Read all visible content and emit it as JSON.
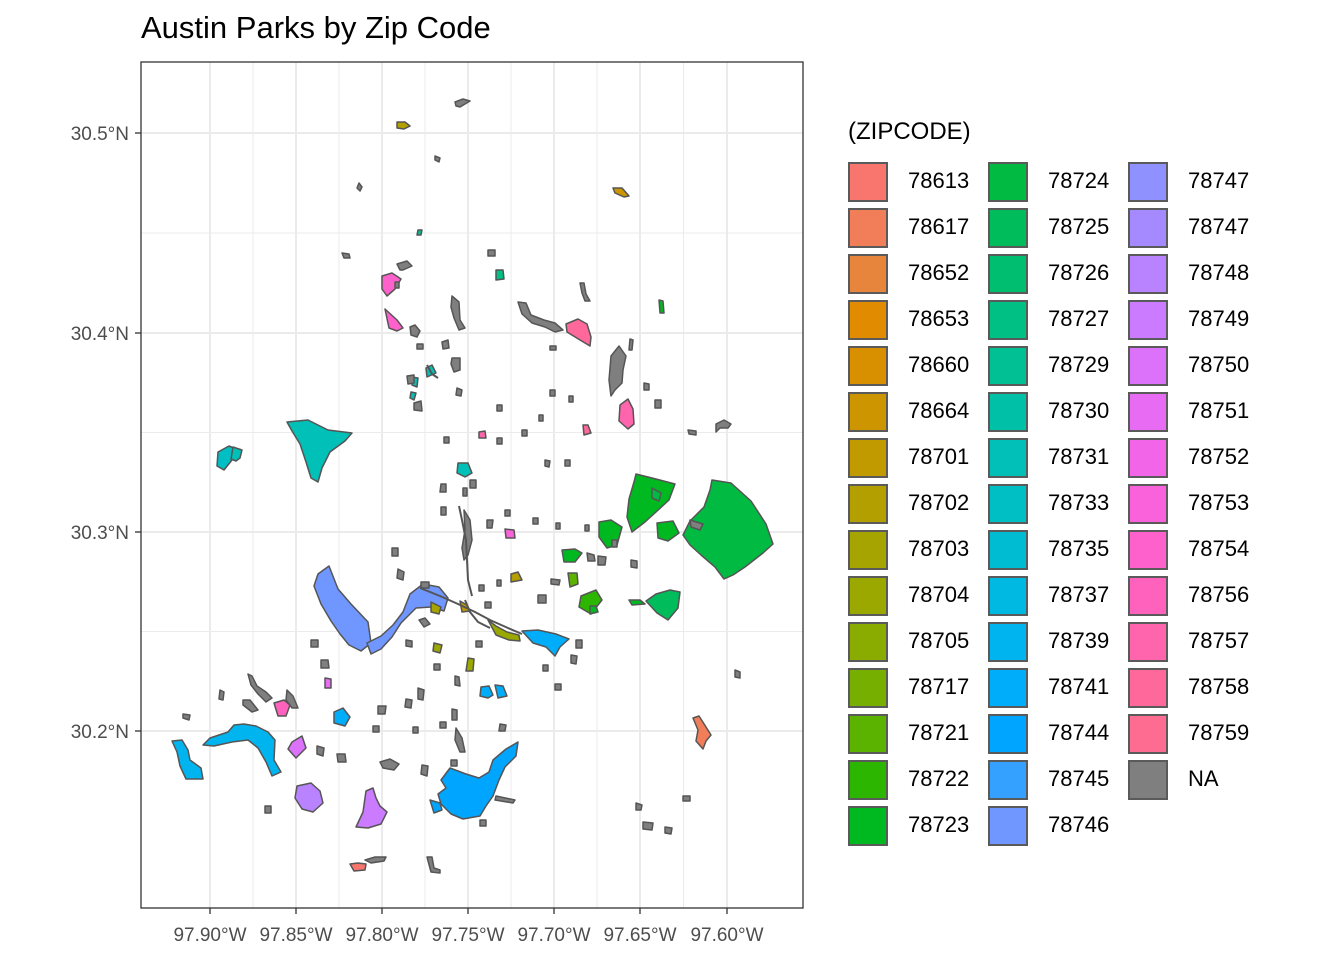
{
  "title": "Austin Parks by Zip Code",
  "legend": {
    "title": "(ZIPCODE)",
    "items": [
      {
        "label": "78613",
        "color": "#F8766D"
      },
      {
        "label": "78617",
        "color": "#F17E58"
      },
      {
        "label": "78652",
        "color": "#E7853D"
      },
      {
        "label": "78653",
        "color": "#E08B00"
      },
      {
        "label": "78660",
        "color": "#D89000"
      },
      {
        "label": "78664",
        "color": "#CD9600"
      },
      {
        "label": "78701",
        "color": "#C19A00"
      },
      {
        "label": "78702",
        "color": "#B49F00"
      },
      {
        "label": "78703",
        "color": "#A6A400"
      },
      {
        "label": "78704",
        "color": "#9AA800"
      },
      {
        "label": "78705",
        "color": "#8AAB00"
      },
      {
        "label": "78717",
        "color": "#76AF00"
      },
      {
        "label": "78721",
        "color": "#5BB300"
      },
      {
        "label": "78722",
        "color": "#2CB600"
      },
      {
        "label": "78723",
        "color": "#00B81F"
      },
      {
        "label": "78724",
        "color": "#00BA42"
      },
      {
        "label": "78725",
        "color": "#00BC5B"
      },
      {
        "label": "78726",
        "color": "#00BE70"
      },
      {
        "label": "78727",
        "color": "#00C084"
      },
      {
        "label": "78729",
        "color": "#00C094"
      },
      {
        "label": "78730",
        "color": "#00C1A7"
      },
      {
        "label": "78731",
        "color": "#00C0B8"
      },
      {
        "label": "78733",
        "color": "#00BFC4"
      },
      {
        "label": "78735",
        "color": "#00BCD3"
      },
      {
        "label": "78737",
        "color": "#00B9E3"
      },
      {
        "label": "78739",
        "color": "#00B4EF"
      },
      {
        "label": "78741",
        "color": "#00ADFA"
      },
      {
        "label": "78744",
        "color": "#00A5FF"
      },
      {
        "label": "78745",
        "color": "#34A0FF"
      },
      {
        "label": "78746",
        "color": "#7097FF"
      },
      {
        "label": "78747",
        "color": "#8F91FF"
      },
      {
        "label": "78747",
        "color": "#A58AFF"
      },
      {
        "label": "78748",
        "color": "#B983FF"
      },
      {
        "label": "78749",
        "color": "#CB7BFF"
      },
      {
        "label": "78750",
        "color": "#DC71FA"
      },
      {
        "label": "78751",
        "color": "#E76BF3"
      },
      {
        "label": "78752",
        "color": "#F264E8"
      },
      {
        "label": "78753",
        "color": "#FA62DB"
      },
      {
        "label": "78754",
        "color": "#FF61CC"
      },
      {
        "label": "78756",
        "color": "#FF62BC"
      },
      {
        "label": "78757",
        "color": "#FF65AC"
      },
      {
        "label": "78758",
        "color": "#FF689B"
      },
      {
        "label": "78759",
        "color": "#FF6C91"
      },
      {
        "label": "NA",
        "color": "#7F7F7F"
      }
    ]
  },
  "axes": {
    "x_ticks": [
      "97.90°W",
      "97.85°W",
      "97.80°W",
      "97.75°W",
      "97.70°W",
      "97.65°W",
      "97.60°W"
    ],
    "y_ticks": [
      "30.5°N",
      "30.4°N",
      "30.3°N",
      "30.2°N"
    ]
  },
  "colors": {
    "outline": "#555555",
    "grid": "#ebebeb",
    "panel_border": "#333333",
    "na": "#7F7F7F"
  }
}
